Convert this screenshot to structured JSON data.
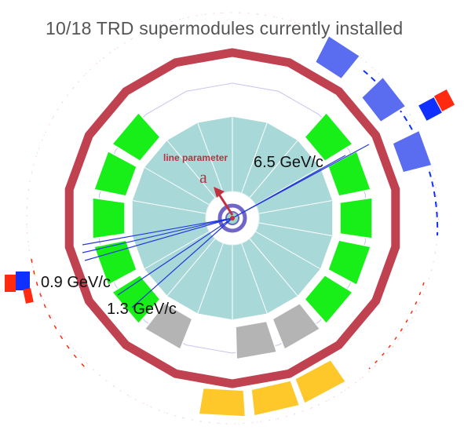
{
  "title": "10/18 TRD supermodules currently installed",
  "annotations": {
    "line_parameter": "line parameter",
    "parameter_symbol": "a"
  },
  "track_momenta": [
    "6.5 GeV/c",
    "0.9 GeV/c",
    "1.3 GeV/c"
  ],
  "colors": {
    "background": "#ffffff",
    "outer_ring": "#c0414f",
    "installed_supermodule": "#18ee18",
    "empty_slot": "#b4b4b4",
    "tpc": "#a9d8d8",
    "tracks": "#2238d8",
    "tof_blue": "#5a6cf0",
    "tof_yellow": "#ffc82a",
    "muon_red": "#ff2a10",
    "muon_blue": "#1030ff",
    "title_text": "#555555",
    "annotation_text": "#b8323f",
    "label_text": "#111111"
  }
}
